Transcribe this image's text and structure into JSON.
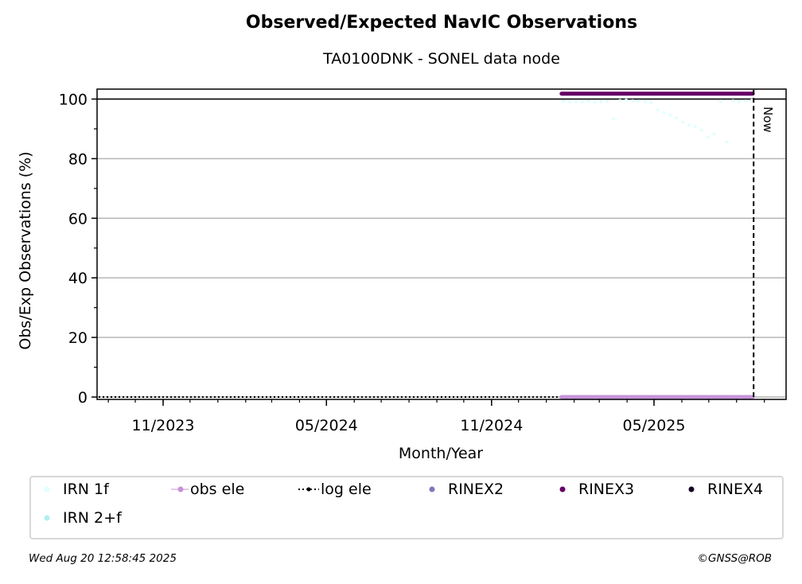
{
  "title": "Observed/Expected NavIC Observations",
  "subtitle": "TA0100DNK - SONEL data node",
  "footer": {
    "timestamp": "Wed Aug 20 12:58:45 2025",
    "credit": "©GNSS@ROB"
  },
  "chart_data": {
    "type": "scatter",
    "title": "Observed/Expected NavIC Observations",
    "subtitle": "TA0100DNK - SONEL data node",
    "xlabel": "Month/Year",
    "ylabel": "Obs/Exp Observations (%)",
    "x_ticks": [
      "11/2023",
      "05/2024",
      "11/2024",
      "05/2025"
    ],
    "y_ticks": [
      0,
      20,
      40,
      60,
      80,
      100
    ],
    "ylim": [
      -1,
      103
    ],
    "grid": "horizontal",
    "now_label": "Now",
    "now_date": "2025-08-20",
    "colors": {
      "irn_1f": "#e0ffff",
      "irn_2f": "#aff0f0",
      "obs_ele": "#c792d9",
      "log_ele": "#000000",
      "rinex2": "#7f78b8",
      "rinex3": "#660066",
      "rinex4": "#1a0022"
    },
    "legend": [
      {
        "key": "irn_1f",
        "label": "IRN 1f",
        "marker": "dot"
      },
      {
        "key": "obs_ele",
        "label": "obs ele",
        "marker": "line-dot"
      },
      {
        "key": "log_ele",
        "label": "log ele",
        "marker": "dotted-line-dot"
      },
      {
        "key": "rinex2",
        "label": "RINEX2",
        "marker": "dot"
      },
      {
        "key": "rinex3",
        "label": "RINEX3",
        "marker": "dot"
      },
      {
        "key": "rinex4",
        "label": "RINEX4",
        "marker": "dot"
      },
      {
        "key": "irn_2f",
        "label": "IRN 2+f",
        "marker": "dot"
      }
    ],
    "series": [
      {
        "name": "RINEX3",
        "key": "rinex3",
        "value": 101.8,
        "from": "2025-01-18",
        "to": "2025-08-19"
      },
      {
        "name": "obs ele",
        "key": "obs_ele",
        "value": 0,
        "from": "2025-01-18",
        "to": "2025-08-19"
      },
      {
        "name": "log ele",
        "key": "log_ele",
        "value": 0,
        "from": "2023-08-01",
        "to": "2025-08-20"
      },
      {
        "name": "IRN 1f",
        "key": "irn_1f",
        "points": [
          [
            "2025-01-20",
            99.2
          ],
          [
            "2025-01-27",
            99.0
          ],
          [
            "2025-02-03",
            99.1
          ],
          [
            "2025-02-10",
            99.0
          ],
          [
            "2025-02-17",
            99.2
          ],
          [
            "2025-02-24",
            99.0
          ],
          [
            "2025-03-03",
            99.1
          ],
          [
            "2025-03-10",
            99.2
          ],
          [
            "2025-03-17",
            93.3
          ],
          [
            "2025-03-24",
            99.5
          ],
          [
            "2025-03-31",
            99.6
          ],
          [
            "2025-04-07",
            99.4
          ],
          [
            "2025-04-14",
            99.3
          ],
          [
            "2025-04-21",
            99.1
          ],
          [
            "2025-04-28",
            98.8
          ],
          [
            "2025-05-05",
            96.3
          ],
          [
            "2025-05-12",
            95.5
          ],
          [
            "2025-05-19",
            94.6
          ],
          [
            "2025-05-26",
            93.7
          ],
          [
            "2025-06-02",
            92.3
          ],
          [
            "2025-06-09",
            91.3
          ],
          [
            "2025-06-16",
            90.8
          ],
          [
            "2025-06-23",
            89.5
          ],
          [
            "2025-06-30",
            87.1
          ],
          [
            "2025-07-07",
            88.3
          ],
          [
            "2025-07-14",
            99.3
          ],
          [
            "2025-07-21",
            85.6
          ],
          [
            "2025-07-28",
            99.4
          ],
          [
            "2025-08-04",
            99.1
          ],
          [
            "2025-08-11",
            99.3
          ],
          [
            "2025-08-18",
            99.6
          ]
        ]
      }
    ]
  }
}
